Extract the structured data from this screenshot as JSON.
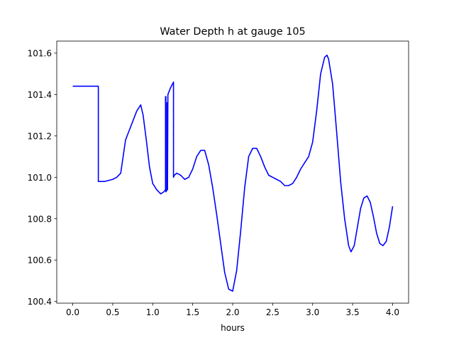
{
  "chart_data": {
    "type": "line",
    "title": "Water Depth h at gauge 105",
    "xlabel": "hours",
    "ylabel": "",
    "xlim": [
      -0.2,
      4.2
    ],
    "ylim": [
      100.392,
      101.658
    ],
    "xticks": [
      0.0,
      0.5,
      1.0,
      1.5,
      2.0,
      2.5,
      3.0,
      3.5,
      4.0
    ],
    "xtick_labels": [
      "0.0",
      "0.5",
      "1.0",
      "1.5",
      "2.0",
      "2.5",
      "3.0",
      "3.5",
      "4.0"
    ],
    "yticks": [
      100.4,
      100.6,
      100.8,
      101.0,
      101.2,
      101.4,
      101.6
    ],
    "ytick_labels": [
      "100.4",
      "100.6",
      "100.8",
      "101.0",
      "101.2",
      "101.4",
      "101.6"
    ],
    "grid": false,
    "series": [
      {
        "color": "#0000ff",
        "x": [
          0.0,
          0.3,
          0.32,
          0.32,
          0.4,
          0.5,
          0.55,
          0.6,
          0.63,
          0.66,
          0.7,
          0.75,
          0.8,
          0.85,
          0.88,
          0.92,
          0.96,
          1.0,
          1.05,
          1.1,
          1.14,
          1.16,
          1.16,
          1.165,
          1.165,
          1.18,
          1.18,
          1.185,
          1.185,
          1.19,
          1.22,
          1.26,
          1.26,
          1.27,
          1.3,
          1.35,
          1.4,
          1.45,
          1.5,
          1.55,
          1.6,
          1.65,
          1.7,
          1.75,
          1.8,
          1.85,
          1.9,
          1.95,
          2.0,
          2.05,
          2.1,
          2.15,
          2.2,
          2.25,
          2.3,
          2.35,
          2.4,
          2.45,
          2.5,
          2.55,
          2.6,
          2.65,
          2.7,
          2.75,
          2.8,
          2.85,
          2.9,
          2.95,
          3.0,
          3.05,
          3.1,
          3.15,
          3.18,
          3.2,
          3.25,
          3.3,
          3.35,
          3.4,
          3.45,
          3.48,
          3.52,
          3.56,
          3.6,
          3.64,
          3.68,
          3.72,
          3.76,
          3.8,
          3.84,
          3.88,
          3.92,
          3.96,
          4.0
        ],
        "y": [
          101.44,
          101.44,
          101.44,
          100.98,
          100.98,
          100.99,
          101.0,
          101.02,
          101.1,
          101.18,
          101.22,
          101.27,
          101.32,
          101.35,
          101.3,
          101.18,
          101.05,
          100.97,
          100.94,
          100.92,
          100.93,
          100.94,
          101.39,
          101.39,
          100.93,
          100.94,
          101.36,
          101.36,
          100.94,
          101.4,
          101.43,
          101.46,
          101.0,
          101.01,
          101.02,
          101.01,
          100.99,
          101.0,
          101.04,
          101.1,
          101.13,
          101.13,
          101.06,
          100.95,
          100.82,
          100.68,
          100.54,
          100.46,
          100.45,
          100.55,
          100.74,
          100.95,
          101.1,
          101.14,
          101.14,
          101.1,
          101.05,
          101.01,
          101.0,
          100.99,
          100.98,
          100.96,
          100.96,
          100.97,
          101.0,
          101.04,
          101.07,
          101.1,
          101.17,
          101.32,
          101.5,
          101.58,
          101.59,
          101.57,
          101.45,
          101.22,
          100.98,
          100.8,
          100.67,
          100.64,
          100.67,
          100.76,
          100.85,
          100.9,
          100.91,
          100.88,
          100.81,
          100.73,
          100.68,
          100.67,
          100.69,
          100.76,
          100.86
        ]
      }
    ]
  }
}
